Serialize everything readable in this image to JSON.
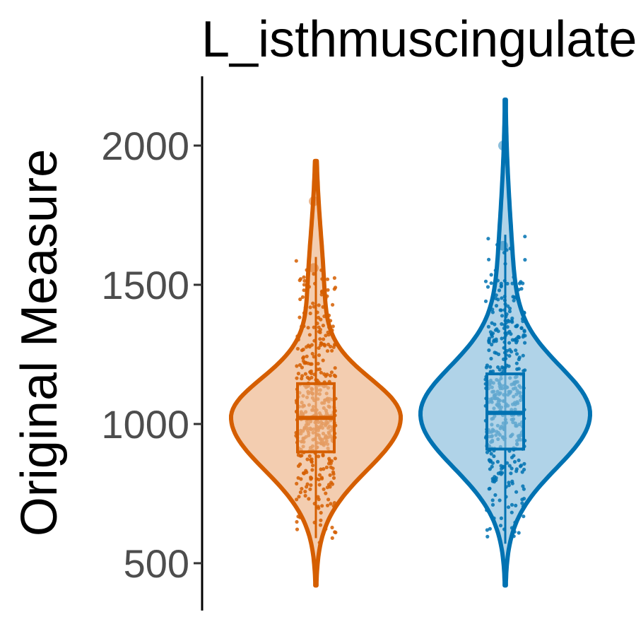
{
  "chart_data": {
    "type": "violin",
    "title": "L_isthmuscingulate",
    "xlabel": "",
    "ylabel": "Original Measure",
    "ylim": [
      420,
      2220
    ],
    "yticks": [
      500,
      1000,
      1500,
      2000
    ],
    "ytick_labels": [
      "500",
      "1000",
      "1500",
      "2000"
    ],
    "grid": false,
    "legend": "none",
    "series": [
      {
        "color": "#D55E00",
        "fill": "#F3CDB0",
        "min": 420,
        "max": 1945,
        "q1": 900,
        "median": 1022,
        "q3": 1145,
        "whisker_low": 590,
        "whisker_high": 1600,
        "mode": 1020,
        "outliers": [
          1800,
          1560
        ]
      },
      {
        "color": "#0072B2",
        "fill": "#B0D3E8",
        "min": 420,
        "max": 2165,
        "q1": 910,
        "median": 1040,
        "q3": 1180,
        "whisker_low": 570,
        "whisker_high": 1680,
        "mode": 1030,
        "outliers": [
          2000,
          1640
        ]
      }
    ]
  }
}
